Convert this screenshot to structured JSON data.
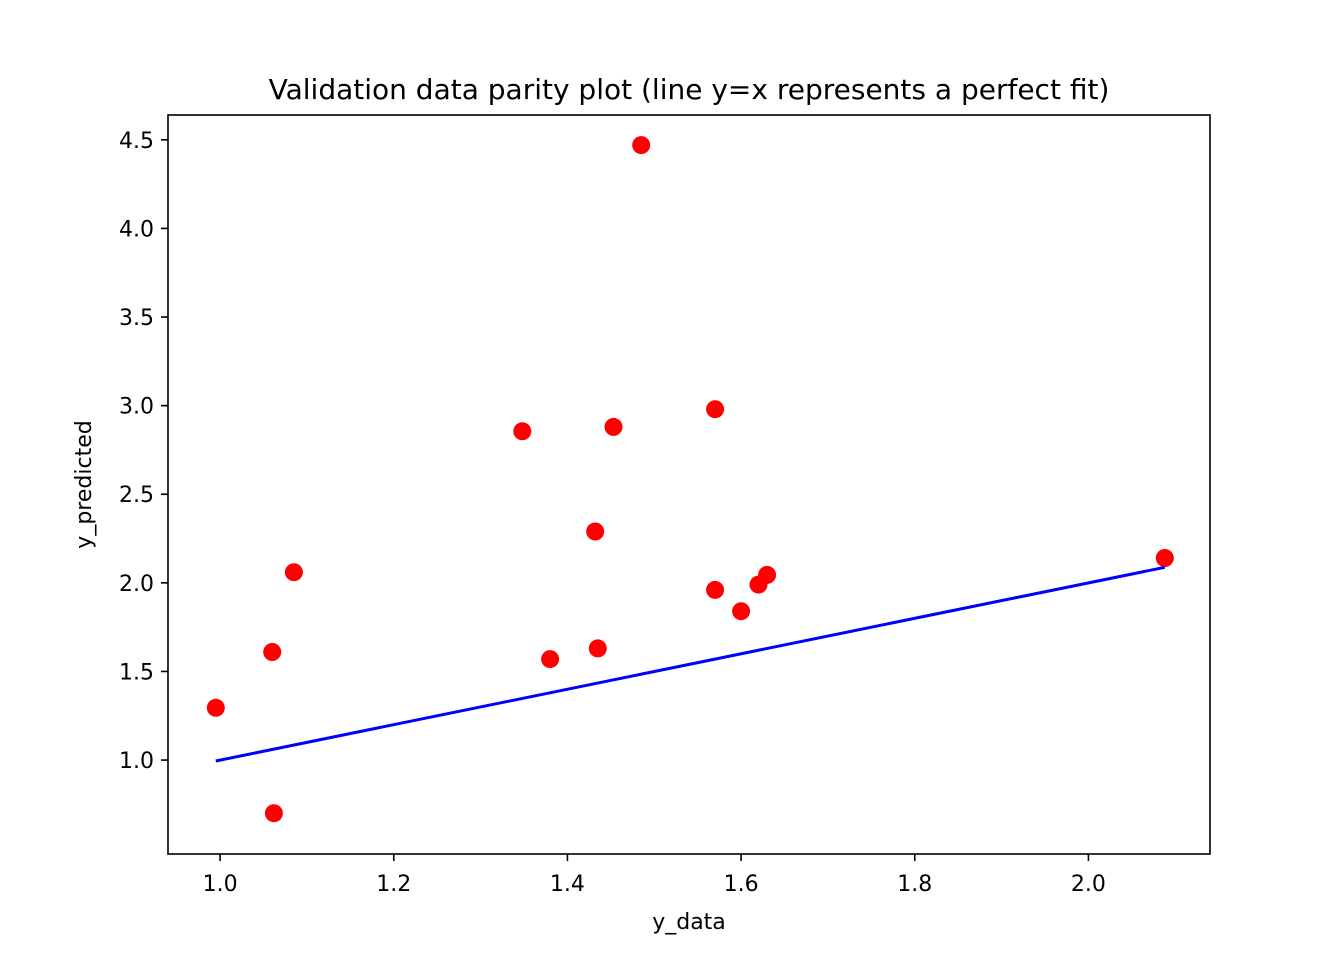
{
  "chart_data": {
    "type": "scatter",
    "title": "Validation data parity plot (line y=x represents a perfect fit)",
    "xlabel": "y_data",
    "ylabel": "y_predicted",
    "xlim": [
      0.94,
      2.14
    ],
    "ylim": [
      0.47,
      4.64
    ],
    "xticks": [
      1.0,
      1.2,
      1.4,
      1.6,
      1.8,
      2.0
    ],
    "xtick_labels": [
      "1.0",
      "1.2",
      "1.4",
      "1.6",
      "1.8",
      "2.0"
    ],
    "yticks": [
      1.0,
      1.5,
      2.0,
      2.5,
      3.0,
      3.5,
      4.0,
      4.5
    ],
    "ytick_labels": [
      "1.0",
      "1.5",
      "2.0",
      "2.5",
      "3.0",
      "3.5",
      "4.0",
      "4.5"
    ],
    "grid": false,
    "series": [
      {
        "kind": "scatter",
        "color": "#ff0000",
        "points": [
          {
            "x": 0.995,
            "y": 1.295
          },
          {
            "x": 1.06,
            "y": 1.61
          },
          {
            "x": 1.062,
            "y": 0.7
          },
          {
            "x": 1.085,
            "y": 2.06
          },
          {
            "x": 1.348,
            "y": 2.855
          },
          {
            "x": 1.38,
            "y": 1.57
          },
          {
            "x": 1.432,
            "y": 2.29
          },
          {
            "x": 1.435,
            "y": 1.63
          },
          {
            "x": 1.453,
            "y": 2.88
          },
          {
            "x": 1.485,
            "y": 4.47
          },
          {
            "x": 1.57,
            "y": 2.98
          },
          {
            "x": 1.57,
            "y": 1.96
          },
          {
            "x": 1.6,
            "y": 1.84
          },
          {
            "x": 1.62,
            "y": 1.99
          },
          {
            "x": 1.63,
            "y": 2.045
          },
          {
            "x": 2.088,
            "y": 2.14
          }
        ]
      },
      {
        "kind": "line",
        "color": "#0000ff",
        "x": [
          0.995,
          2.088
        ],
        "y": [
          0.995,
          2.088
        ]
      }
    ]
  }
}
